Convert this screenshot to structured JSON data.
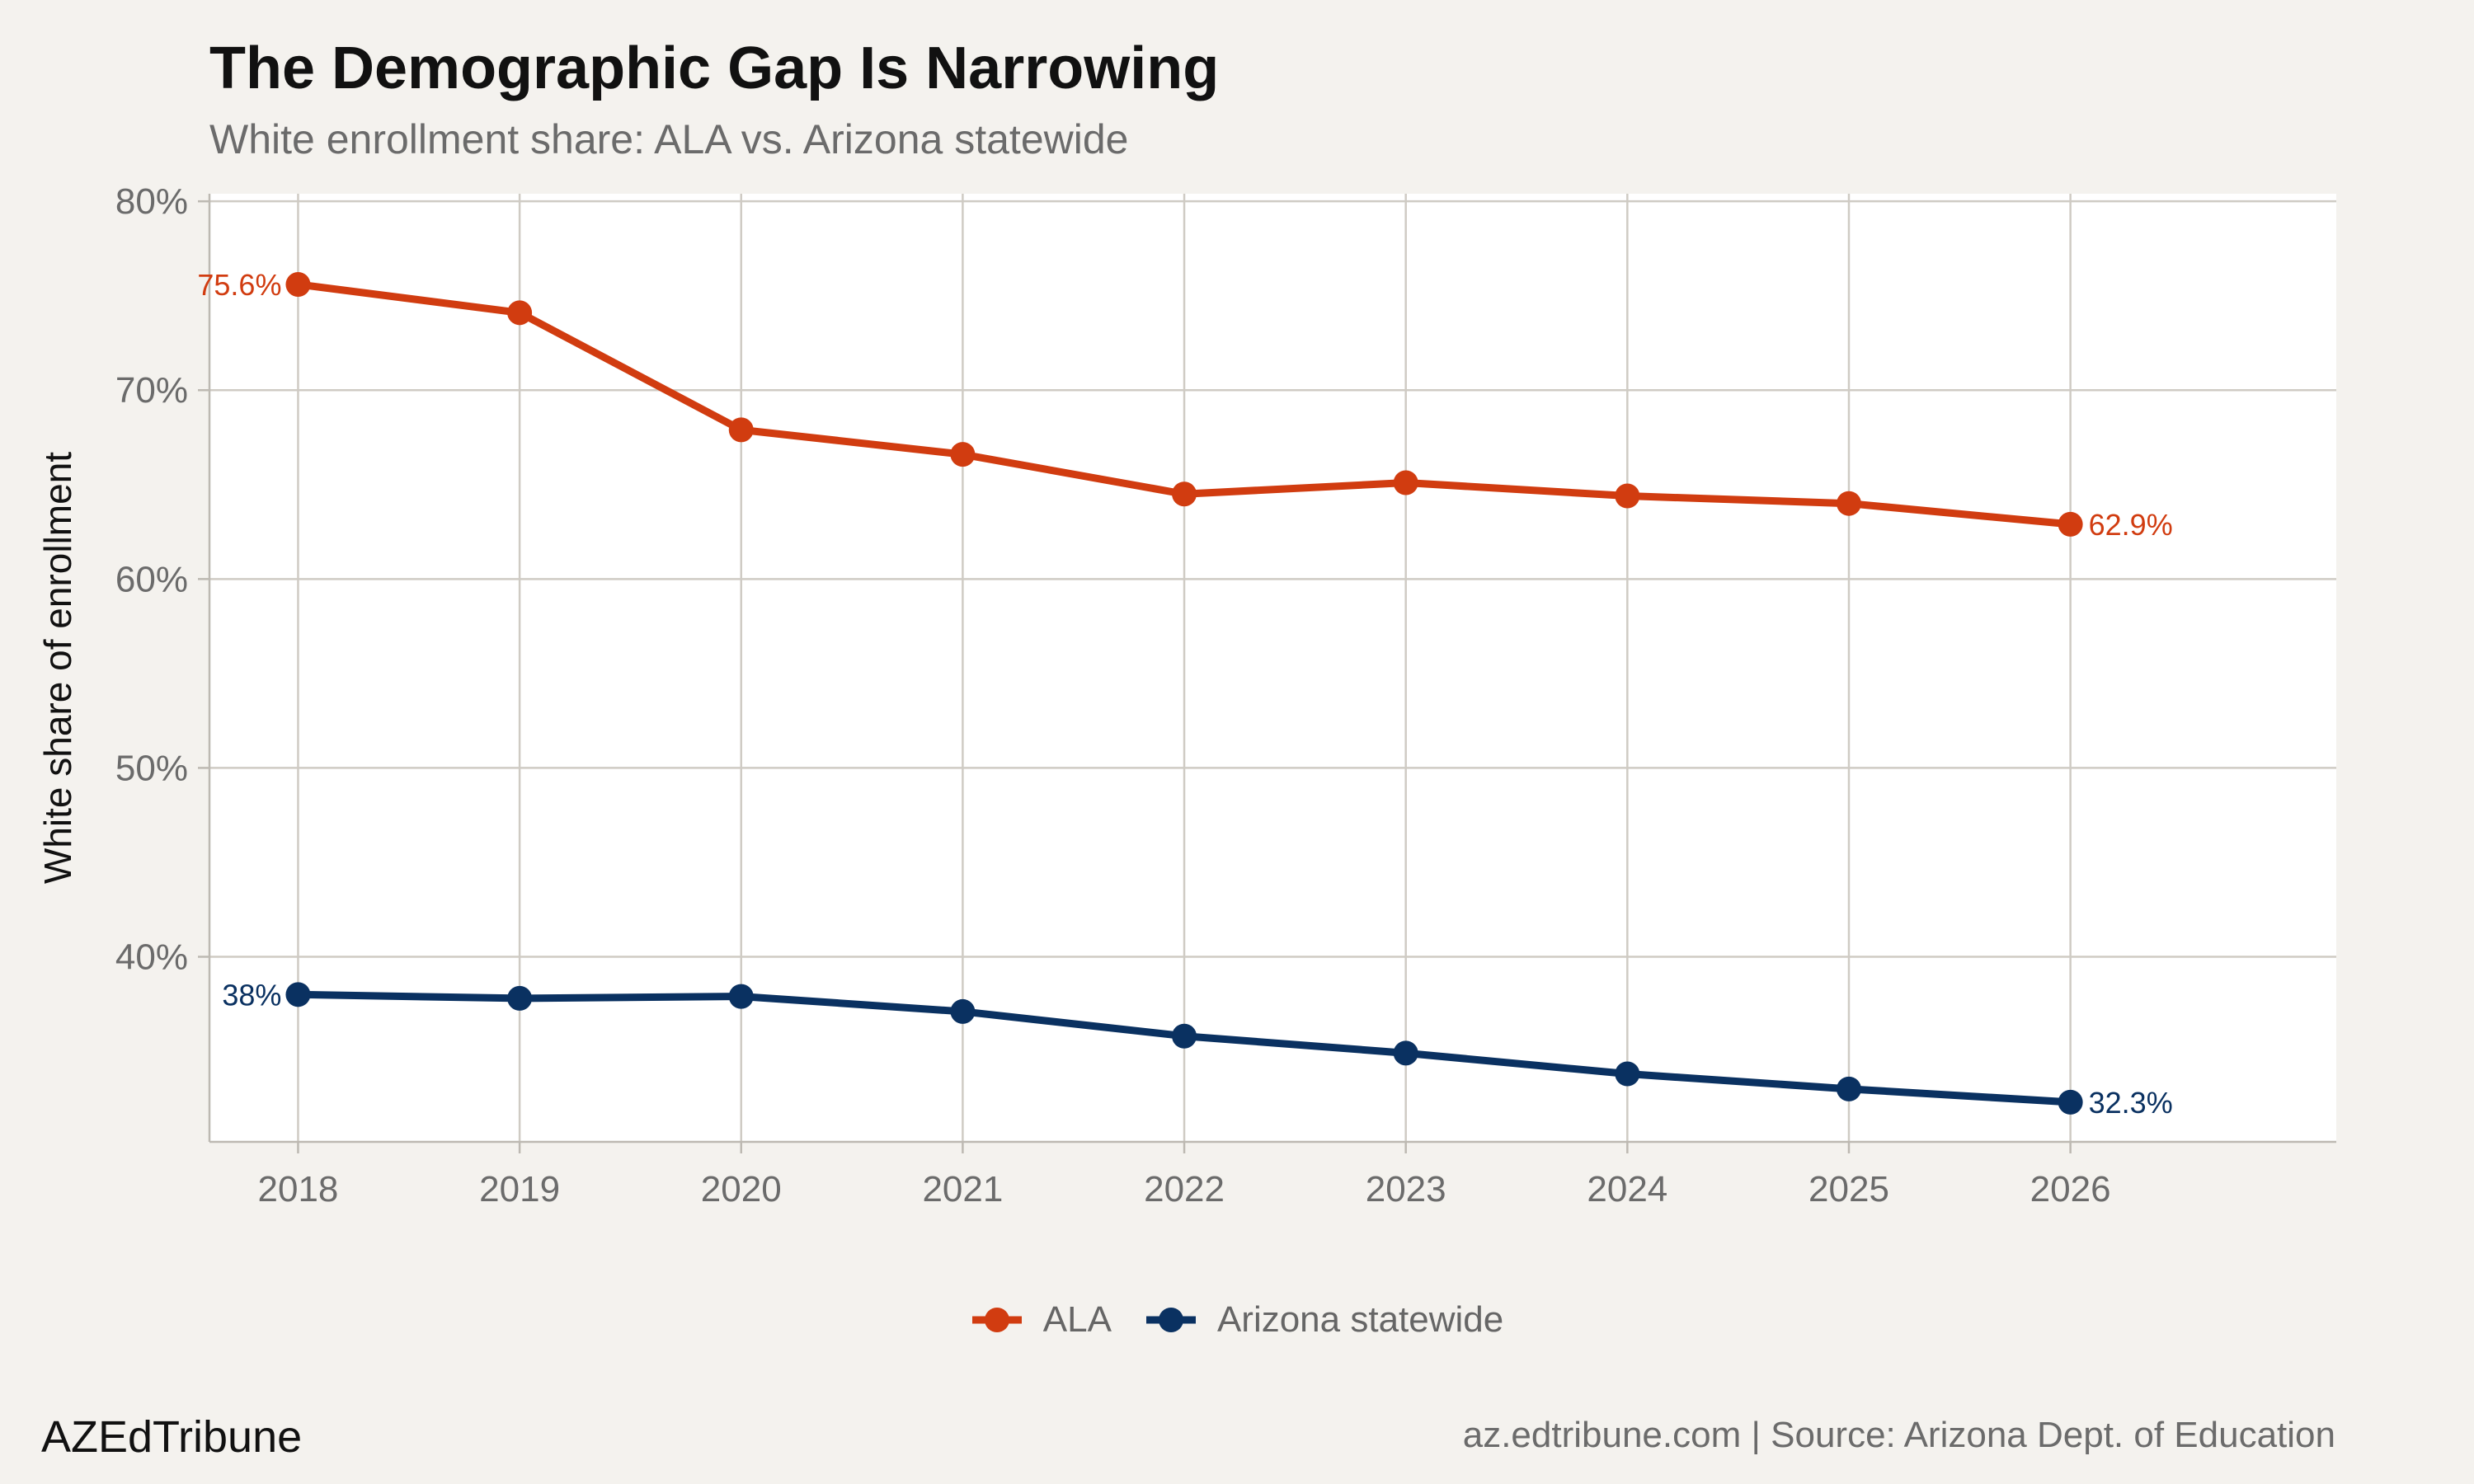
{
  "header": {
    "title": "The Demographic Gap Is Narrowing",
    "subtitle": "White enrollment share: ALA vs. Arizona statewide"
  },
  "chart_data": {
    "type": "line",
    "title": "The Demographic Gap Is Narrowing",
    "subtitle": "White enrollment share: ALA vs. Arizona statewide",
    "xlabel": "",
    "ylabel": "White share of enrollment",
    "x": [
      2018,
      2019,
      2020,
      2021,
      2022,
      2023,
      2024,
      2025,
      2026
    ],
    "x_tick_labels": [
      "2018",
      "2019",
      "2020",
      "2021",
      "2022",
      "2023",
      "2024",
      "2025",
      "2026"
    ],
    "xlim": [
      2017.6,
      2027.2
    ],
    "ylim": [
      30.2,
      80.4
    ],
    "y_ticks": [
      40,
      50,
      60,
      70,
      80
    ],
    "y_tick_labels": [
      "40%",
      "50%",
      "60%",
      "70%",
      "80%"
    ],
    "grid": true,
    "legend_position": "bottom",
    "series": [
      {
        "name": "ALA",
        "color": "#d13c10",
        "values": [
          75.6,
          74.1,
          67.9,
          66.6,
          64.5,
          65.1,
          64.4,
          64.0,
          62.9
        ],
        "labels": [
          {
            "x": 2018,
            "text": "75.6%",
            "side": "left"
          },
          {
            "x": 2026,
            "text": "62.9%",
            "side": "right"
          }
        ]
      },
      {
        "name": "Arizona statewide",
        "color": "#0a3161",
        "values": [
          38.0,
          37.8,
          37.9,
          37.1,
          35.8,
          34.9,
          33.8,
          33.0,
          32.3
        ],
        "labels": [
          {
            "x": 2018,
            "text": "38%",
            "side": "left"
          },
          {
            "x": 2026,
            "text": "32.3%",
            "side": "right"
          }
        ]
      }
    ]
  },
  "footer": {
    "brand": "AZEdTribune",
    "source": "az.edtribune.com | Source: Arizona Dept. of Education"
  }
}
